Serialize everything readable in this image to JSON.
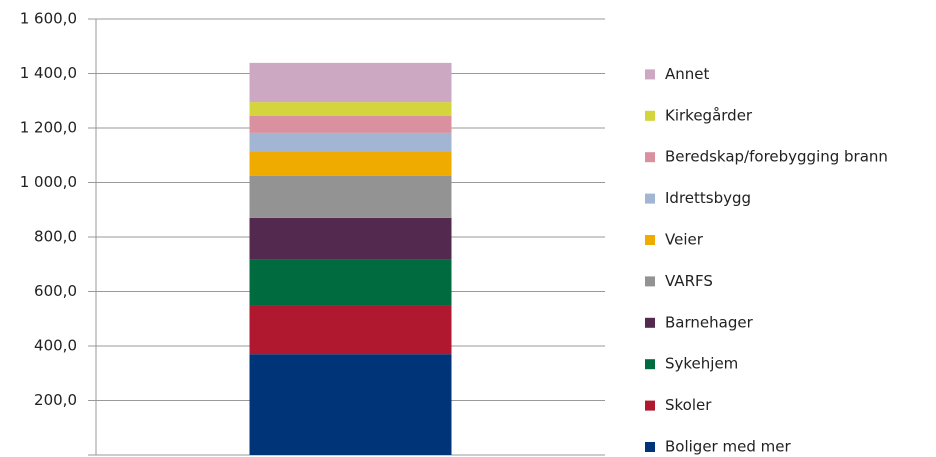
{
  "chart_data": {
    "type": "stacked-bar",
    "categories": [
      null
    ],
    "series": [
      {
        "name": "Boliger med mer",
        "color": "#003479",
        "values": [
          370
        ]
      },
      {
        "name": "Skoler",
        "color": "#b0182f",
        "values": [
          177
        ]
      },
      {
        "name": "Sykehjem",
        "color": "#006b3f",
        "values": [
          172
        ]
      },
      {
        "name": "Barnehager",
        "color": "#53294f",
        "values": [
          151
        ]
      },
      {
        "name": "VARFS",
        "color": "#939393",
        "values": [
          154
        ]
      },
      {
        "name": "Veier",
        "color": "#f0ab00",
        "values": [
          88
        ]
      },
      {
        "name": "Idrettsbygg",
        "color": "#a2b5d3",
        "values": [
          70
        ]
      },
      {
        "name": "Beredskap/forebygging brann",
        "color": "#d9909f",
        "values": [
          62
        ]
      },
      {
        "name": "Kirkegårder",
        "color": "#d4d43c",
        "values": [
          51
        ]
      },
      {
        "name": "Annet",
        "color": "#cca8c3",
        "values": [
          144
        ]
      }
    ],
    "ylim": [
      0,
      1600
    ],
    "yticks": [
      {
        "value": 200,
        "label": "200,0"
      },
      {
        "value": 400,
        "label": "400,0"
      },
      {
        "value": 600,
        "label": "600,0"
      },
      {
        "value": 800,
        "label": "800,0"
      },
      {
        "value": 1000,
        "label": "1 000,0"
      },
      {
        "value": 1200,
        "label": "1 200,0"
      },
      {
        "value": 1400,
        "label": "1 400,0"
      },
      {
        "value": 1600,
        "label": "1 600,0"
      }
    ],
    "grid": true,
    "legend": "right"
  }
}
